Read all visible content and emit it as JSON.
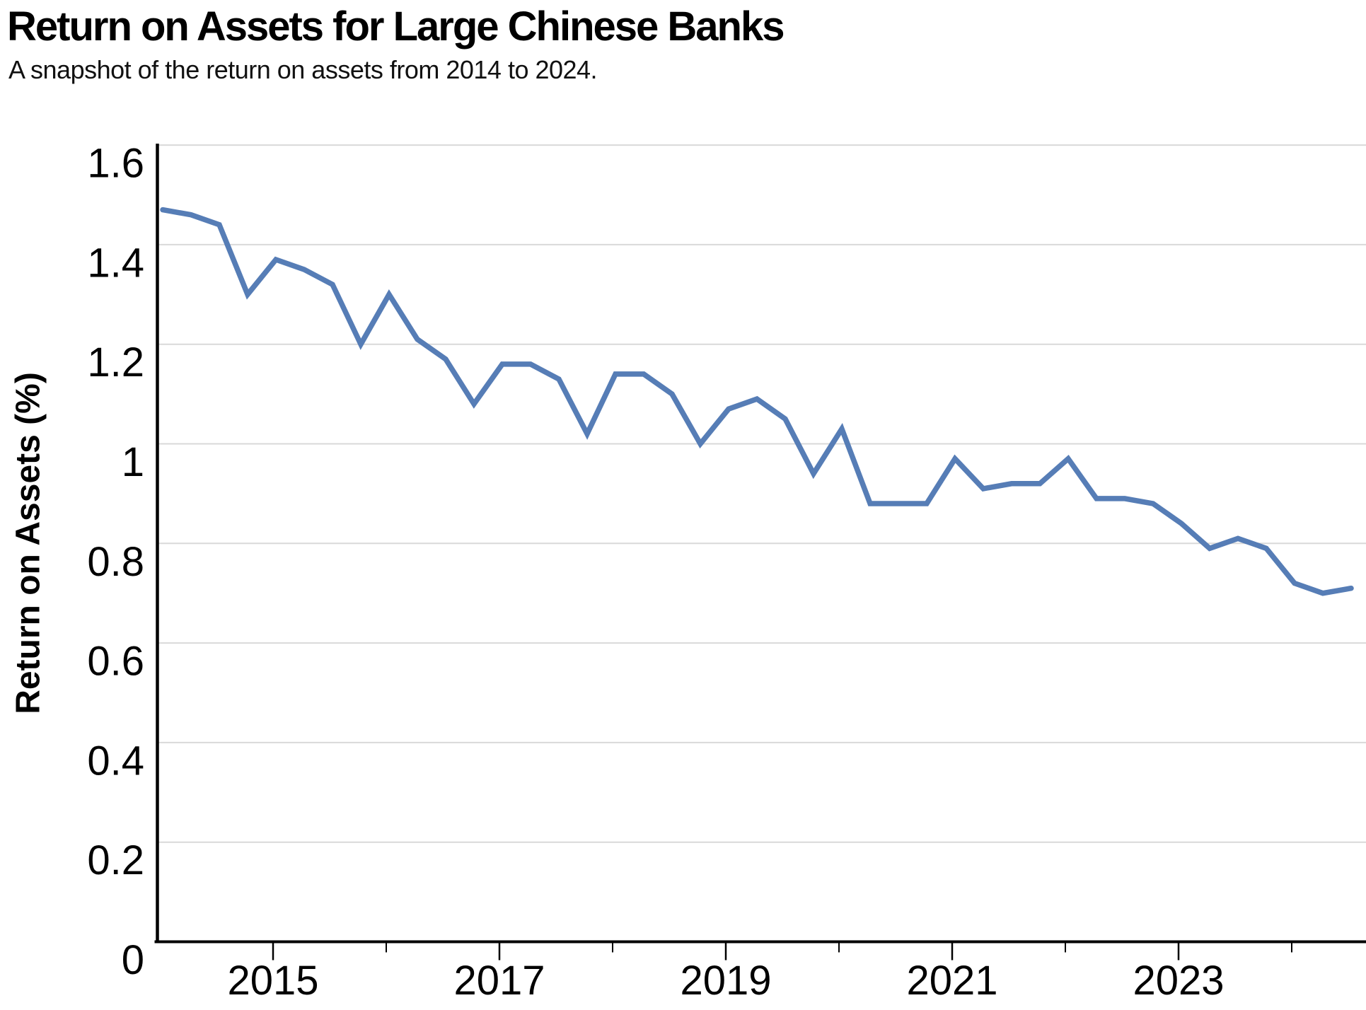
{
  "header": {
    "title": "Return on Assets for Large Chinese Banks",
    "subtitle": "A snapshot of the return on assets from 2014 to 2024."
  },
  "chart_data": {
    "type": "line",
    "title": "Return on Assets for Large Chinese Banks",
    "subtitle": "A snapshot of the return on assets from 2014 to 2024.",
    "xlabel": "",
    "ylabel": "Return on Assets (%)",
    "ylim": [
      0,
      1.6
    ],
    "grid": "horizontal-only",
    "legend": "none",
    "line_color": "#567DB6",
    "axis_color": "#000000",
    "gridline_color": "#D9D9D9",
    "y_tick_values": [
      0,
      0.2,
      0.4,
      0.6,
      0.8,
      1,
      1.2,
      1.4,
      1.6
    ],
    "y_tick_labels": [
      "0",
      "0.2",
      "0.4",
      "0.6",
      "0.8",
      "1",
      "1.2",
      "1.4",
      "1.6"
    ],
    "x_major_tick_years": [
      2015,
      2017,
      2019,
      2021,
      2023
    ],
    "x_major_tick_labels": [
      "2015",
      "2017",
      "2019",
      "2021",
      "2023"
    ],
    "x_minor_tick_years": [
      2016,
      2018,
      2020,
      2022,
      2024
    ],
    "categories": [
      "2014 Q1",
      "2014 Q2",
      "2014 Q3",
      "2014 Q4",
      "2015 Q1",
      "2015 Q2",
      "2015 Q3",
      "2015 Q4",
      "2016 Q1",
      "2016 Q2",
      "2016 Q3",
      "2016 Q4",
      "2017 Q1",
      "2017 Q2",
      "2017 Q3",
      "2017 Q4",
      "2018 Q1",
      "2018 Q2",
      "2018 Q3",
      "2018 Q4",
      "2019 Q1",
      "2019 Q2",
      "2019 Q3",
      "2019 Q4",
      "2020 Q1",
      "2020 Q2",
      "2020 Q3",
      "2020 Q4",
      "2021 Q1",
      "2021 Q2",
      "2021 Q3",
      "2021 Q4",
      "2022 Q1",
      "2022 Q2",
      "2022 Q3",
      "2022 Q4",
      "2023 Q1",
      "2023 Q2",
      "2023 Q3",
      "2023 Q4",
      "2024 Q1",
      "2024 Q2",
      "2024 Q3"
    ],
    "series": [
      {
        "name": "Return on Assets (%)",
        "values": [
          1.47,
          1.46,
          1.44,
          1.3,
          1.37,
          1.35,
          1.32,
          1.2,
          1.3,
          1.21,
          1.17,
          1.08,
          1.16,
          1.16,
          1.13,
          1.02,
          1.14,
          1.14,
          1.1,
          1.0,
          1.07,
          1.09,
          1.05,
          0.94,
          1.03,
          0.88,
          0.88,
          0.88,
          0.97,
          0.91,
          0.92,
          0.92,
          0.97,
          0.89,
          0.89,
          0.88,
          0.84,
          0.79,
          0.81,
          0.79,
          0.72,
          0.7,
          0.71
        ]
      }
    ]
  }
}
